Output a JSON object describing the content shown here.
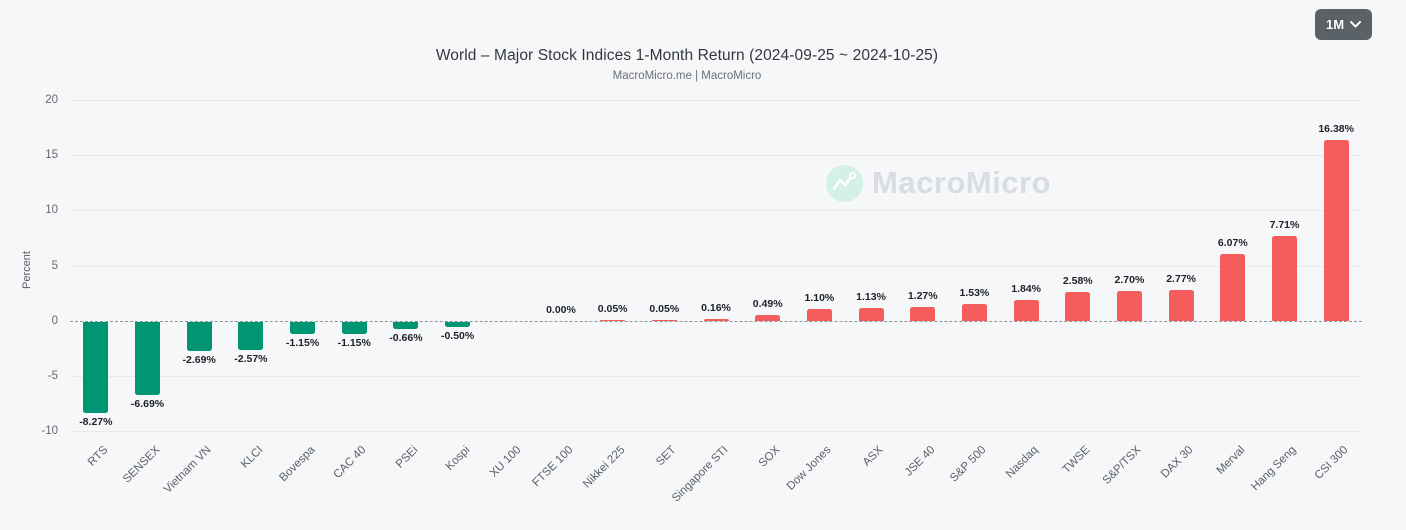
{
  "controls": {
    "range_label": "1M"
  },
  "watermark": {
    "text": "MacroMicro",
    "icon": "macromicro-logo-icon",
    "circle_color": "#d5f0e4"
  },
  "chart_data": {
    "type": "bar",
    "title": "World – Major Stock Indices 1-Month Return (2024-09-25 ~ 2024-10-25)",
    "subtitle": "MacroMicro.me | MacroMicro",
    "ylabel": "Percent",
    "ylim": [
      -10,
      20
    ],
    "yticks": [
      20,
      15,
      10,
      5,
      0,
      -5,
      -10
    ],
    "grid": "horizontal",
    "zero_line": "dashed",
    "legend": "none",
    "categories": [
      "RTS",
      "SENSEX",
      "Vietnam VN",
      "KLCI",
      "Bovespa",
      "CAC 40",
      "PSEi",
      "Kospi",
      "XU 100",
      "FTSE 100",
      "Nikkei 225",
      "SET",
      "Singapore STI",
      "SOX",
      "Dow Jones",
      "ASX",
      "JSE 40",
      "S&P 500",
      "Nasdaq",
      "TWSE",
      "S&P/TSX",
      "DAX 30",
      "Merval",
      "Hang Seng",
      "CSI 300"
    ],
    "values": [
      -8.27,
      -6.69,
      -2.69,
      -2.57,
      -1.15,
      -1.15,
      -0.66,
      -0.5,
      null,
      0.0,
      0.05,
      0.05,
      0.16,
      0.49,
      1.1,
      1.13,
      1.27,
      1.53,
      1.84,
      2.58,
      2.7,
      2.77,
      6.07,
      7.71,
      16.38
    ],
    "value_labels": [
      "-8.27%",
      "-6.69%",
      "-2.69%",
      "-2.57%",
      "-1.15%",
      "-1.15%",
      "-0.66%",
      "-0.50%",
      "",
      "0.00%",
      "0.05%",
      "0.05%",
      "0.16%",
      "0.49%",
      "1.10%",
      "1.13%",
      "1.27%",
      "1.53%",
      "1.84%",
      "2.58%",
      "2.70%",
      "2.77%",
      "6.07%",
      "7.71%",
      "16.38%"
    ],
    "colors": {
      "positive": "#f45d5c",
      "negative": "#009674"
    }
  }
}
